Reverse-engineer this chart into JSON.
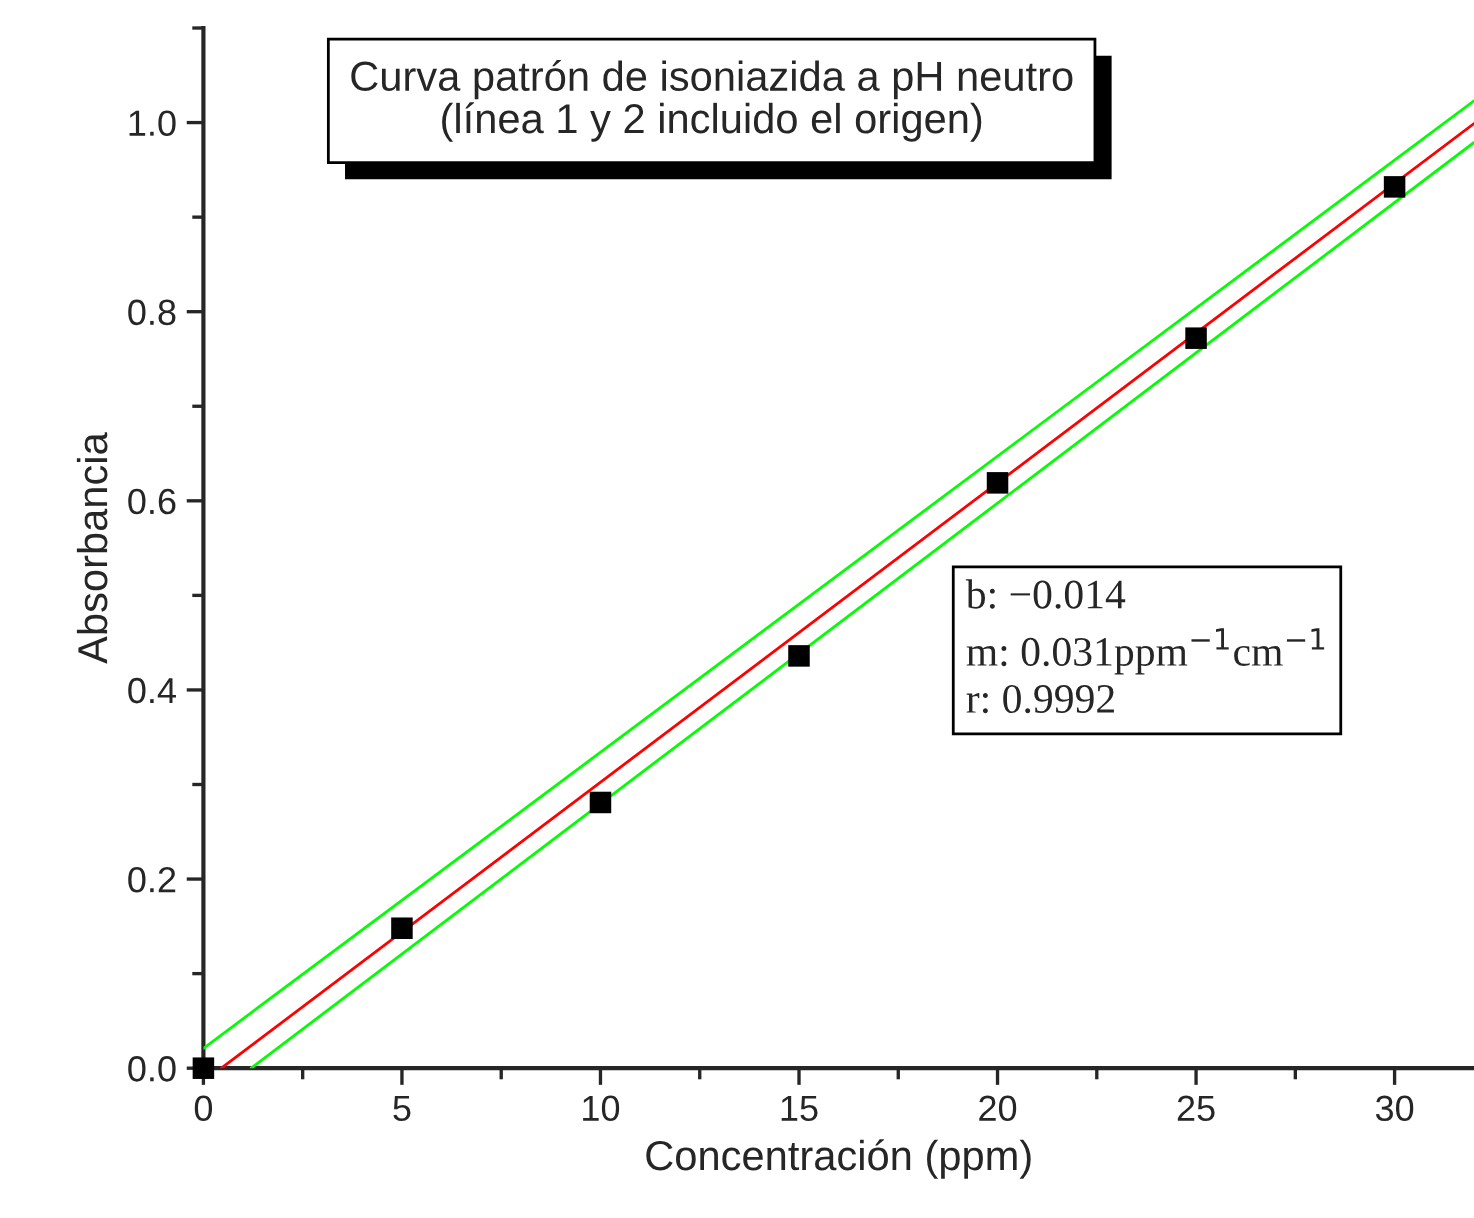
{
  "chart_data": {
    "type": "scatter",
    "title": "Curva patrón de isoniazida a pH neutro\n(línea 1 y 2 incluido el origen)",
    "xlabel": "Concentración (ppm)",
    "ylabel": "Absorbancia",
    "x": [
      0,
      5,
      10,
      15,
      20,
      25,
      30
    ],
    "series": [
      {
        "color": "#000000",
        "marker": "square",
        "values": [
          0,
          0.148,
          0.281,
          0.436,
          0.619,
          0.772,
          0.932
        ]
      },
      {
        "type": "line",
        "color": "#ff0000",
        "line_style": "solid",
        "marker": "none",
        "x": [
          0.45,
          32
        ],
        "values": [
          0,
          0.999
        ]
      },
      {
        "type": "line",
        "color": "#00ff00",
        "line_style": "solid",
        "marker": "none",
        "x": [
          0,
          32
        ],
        "values": [
          0.021,
          1.023
        ]
      },
      {
        "type": "line",
        "color": "#00ff00",
        "line_style": "solid",
        "marker": "none",
        "x": [
          1.2,
          32
        ],
        "values": [
          0,
          0.979
        ]
      }
    ],
    "annotations": [
      "b: −0.014\nm: 0.031ppm$^{−1}$cm$^{−1}$\nr: 0.9992"
    ],
    "xlim": [
      0,
      32
    ],
    "ylim": [
      0,
      1.1
    ],
    "xticks": [
      0,
      5,
      10,
      15,
      20,
      25,
      30
    ],
    "yticks": [
      {
        "value": 0,
        "label": "0.0"
      },
      {
        "value": 0.2,
        "label": "0.2"
      },
      {
        "value": 0.4,
        "label": "0.4"
      },
      {
        "value": 0.6,
        "label": "0.6"
      },
      {
        "value": 0.8,
        "label": "0.8"
      },
      {
        "value": 1.0,
        "label": "1.0"
      }
    ],
    "grid": false,
    "legend": false
  }
}
